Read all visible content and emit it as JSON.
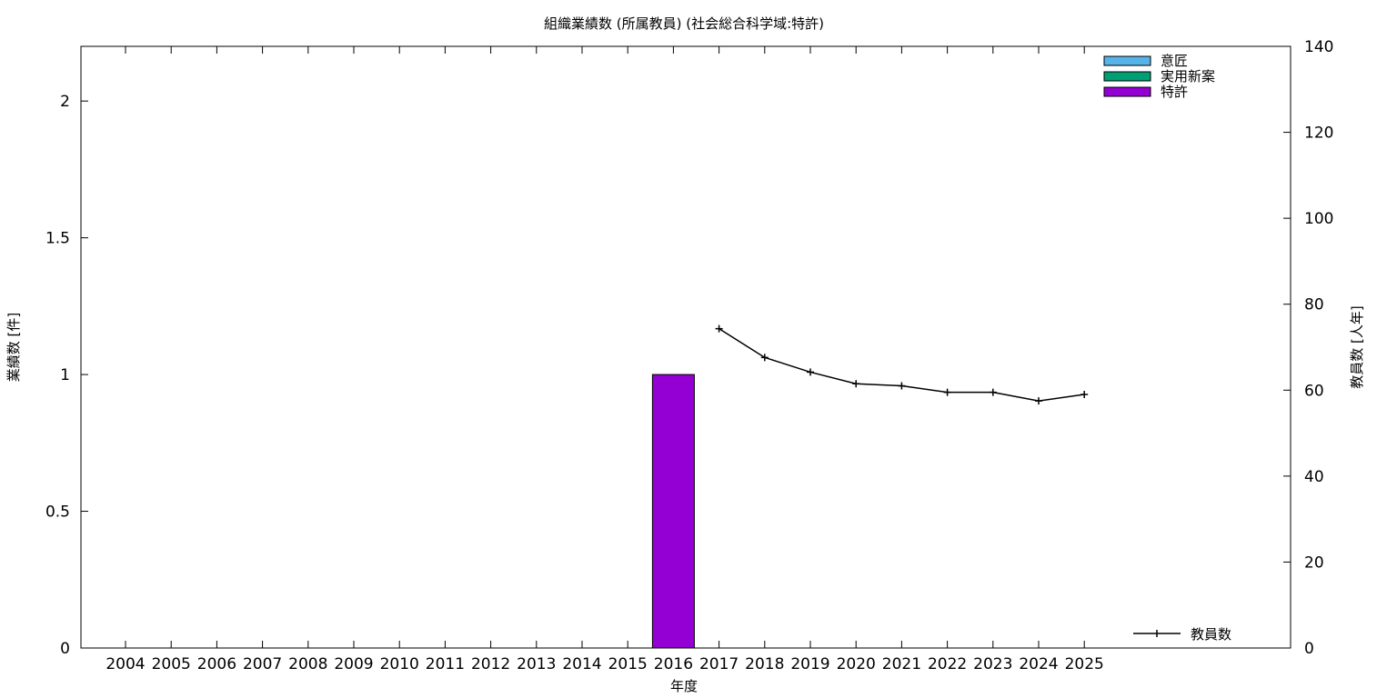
{
  "chart_data": {
    "type": "bar",
    "title": "組織業績数 (所属教員) (社会総合科学域:特許)",
    "xlabel": "年度",
    "ylabel": "業績数 [件]",
    "y2label": "教員数 [人年]",
    "categories": [
      "2004",
      "2005",
      "2006",
      "2007",
      "2008",
      "2009",
      "2010",
      "2011",
      "2012",
      "2013",
      "2014",
      "2015",
      "2016",
      "2017",
      "2018",
      "2019",
      "2020",
      "2021",
      "2022",
      "2023",
      "2024",
      "2025"
    ],
    "ylim": [
      0,
      2.2
    ],
    "yticks": [
      0,
      0.5,
      1,
      1.5,
      2
    ],
    "ytick_labels": [
      "0",
      "0.5",
      "1",
      "1.5",
      "2"
    ],
    "y2lim": [
      0,
      140
    ],
    "y2ticks": [
      0,
      20,
      40,
      60,
      80,
      100,
      120,
      140
    ],
    "y2tick_labels": [
      "0",
      "20",
      "40",
      "60",
      "80",
      "100",
      "120",
      "140"
    ],
    "series": [
      {
        "name": "意匠",
        "color": "#56B4E9",
        "values": [
          0,
          0,
          0,
          0,
          0,
          0,
          0,
          0,
          0,
          0,
          0,
          0,
          0,
          0,
          0,
          0,
          0,
          0,
          0,
          0,
          0,
          0
        ]
      },
      {
        "name": "実用新案",
        "color": "#009E73",
        "values": [
          0,
          0,
          0,
          0,
          0,
          0,
          0,
          0,
          0,
          0,
          0,
          0,
          0,
          0,
          0,
          0,
          0,
          0,
          0,
          0,
          0,
          0
        ]
      },
      {
        "name": "特許",
        "color": "#9400D3",
        "values": [
          0,
          0,
          0,
          0,
          0,
          0,
          0,
          0,
          0,
          0,
          0,
          0,
          1,
          0,
          0,
          0,
          0,
          0,
          0,
          0,
          0,
          0
        ]
      }
    ],
    "line_series": {
      "name": "教員数",
      "color": "#000000",
      "axis": "y2",
      "x": [
        "2017",
        "2018",
        "2019",
        "2020",
        "2021",
        "2022",
        "2023",
        "2024",
        "2025"
      ],
      "values": [
        74.3,
        67.6,
        64.2,
        61.5,
        61.0,
        59.5,
        59.5,
        57.5,
        59.0
      ]
    },
    "legend_position": "top-right",
    "grid": false
  }
}
